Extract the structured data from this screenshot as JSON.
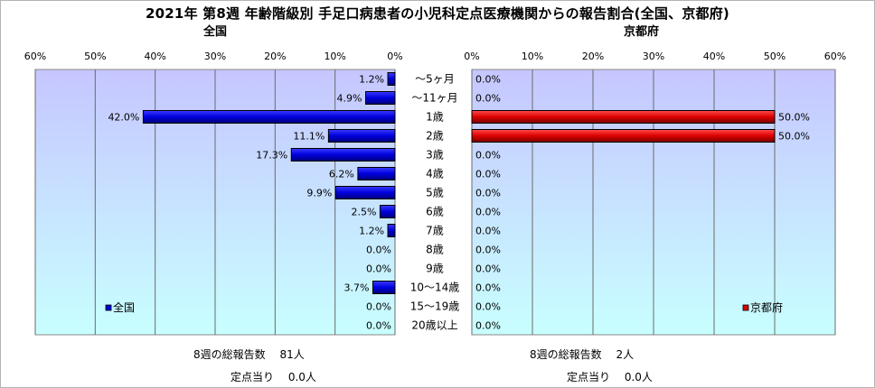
{
  "title": "2021年 第8週 年齢階級別 手足口病患者の小児科定点医療機関からの報告割合(全国、京都府)",
  "colors": {
    "national_bar": "#0000dd",
    "kyoto_bar": "#dd0000",
    "plot_bg_top": "#c6c6ff",
    "plot_bg_bottom": "#c8ffff",
    "grid": "#6b6b6b"
  },
  "chart_data": [
    {
      "type": "bar",
      "orientation": "horizontal",
      "direction": "right-to-left",
      "subtitle": "全国",
      "legend": "全国",
      "legend_position": "bottom-left",
      "xlim": [
        0,
        60
      ],
      "ticks": [
        "0%",
        "10%",
        "20%",
        "30%",
        "40%",
        "50%",
        "60%"
      ],
      "grid": true,
      "categories": [
        "～5ヶ月",
        "～11ヶ月",
        "1歳",
        "2歳",
        "3歳",
        "4歳",
        "5歳",
        "6歳",
        "7歳",
        "8歳",
        "9歳",
        "10～14歳",
        "15～19歳",
        "20歳以上"
      ],
      "values": [
        1.2,
        4.9,
        42.0,
        11.1,
        17.3,
        6.2,
        9.9,
        2.5,
        1.2,
        0.0,
        0.0,
        3.7,
        0.0,
        0.0
      ],
      "labels": [
        "1.2%",
        "4.9%",
        "42.0%",
        "11.1%",
        "17.3%",
        "6.2%",
        "9.9%",
        "2.5%",
        "1.2%",
        "0.0%",
        "0.0%",
        "3.7%",
        "0.0%",
        "0.0%"
      ]
    },
    {
      "type": "bar",
      "orientation": "horizontal",
      "direction": "left-to-right",
      "subtitle": "京都府",
      "legend": "京都府",
      "legend_position": "bottom-right",
      "xlim": [
        0,
        60
      ],
      "ticks": [
        "0%",
        "10%",
        "20%",
        "30%",
        "40%",
        "50%",
        "60%"
      ],
      "grid": true,
      "categories": [
        "～5ヶ月",
        "～11ヶ月",
        "1歳",
        "2歳",
        "3歳",
        "4歳",
        "5歳",
        "6歳",
        "7歳",
        "8歳",
        "9歳",
        "10～14歳",
        "15～19歳",
        "20歳以上"
      ],
      "values": [
        0.0,
        0.0,
        50.0,
        50.0,
        0.0,
        0.0,
        0.0,
        0.0,
        0.0,
        0.0,
        0.0,
        0.0,
        0.0,
        0.0
      ],
      "labels": [
        "0.0%",
        "0.0%",
        "50.0%",
        "50.0%",
        "0.0%",
        "0.0%",
        "0.0%",
        "0.0%",
        "0.0%",
        "0.0%",
        "0.0%",
        "0.0%",
        "0.0%",
        "0.0%"
      ]
    }
  ],
  "footer": {
    "national_total": "8週の総報告数　 81人",
    "national_per_point": "定点当り　 0.0人",
    "kyoto_total": "8週の総報告数　 2人",
    "kyoto_per_point": "定点当り　 0.0人"
  }
}
